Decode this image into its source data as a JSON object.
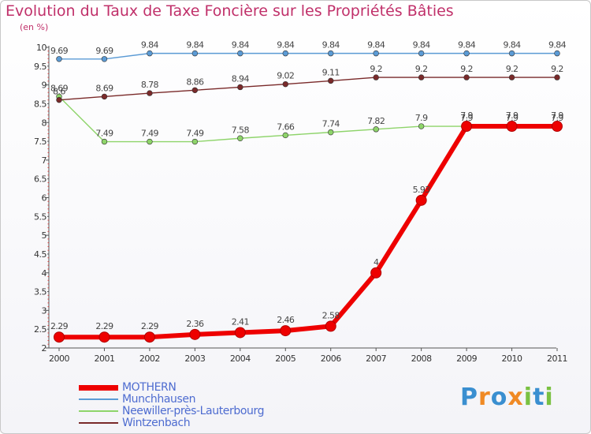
{
  "chart_data": {
    "type": "line",
    "title": "Evolution du Taux de Taxe Foncière sur les Propriétés Bâties",
    "ylabel": "(en %)",
    "xlabel": "",
    "categories": [
      "2000",
      "2001",
      "2002",
      "2003",
      "2004",
      "2005",
      "2006",
      "2007",
      "2008",
      "2009",
      "2010",
      "2011"
    ],
    "ylim": [
      2,
      10
    ],
    "yticks": [
      "2",
      "2.5",
      "3",
      "3.5",
      "4",
      "4.5",
      "5",
      "5.5",
      "6",
      "6.5",
      "7",
      "7.5",
      "8",
      "8.5",
      "9",
      "9.5",
      "10"
    ],
    "grid": false,
    "legend_position": "bottom-left",
    "series": [
      {
        "name": "MOTHERN",
        "color": "#ee0000",
        "values": [
          2.29,
          2.29,
          2.29,
          2.36,
          2.41,
          2.46,
          2.58,
          4,
          5.93,
          7.9,
          7.9,
          7.9
        ],
        "labels": [
          "2.29",
          "2.29",
          "2.29",
          "2.36",
          "2.41",
          "2.46",
          "2.58",
          "4",
          "5.93",
          "7.9",
          "7.9",
          "7.9"
        ]
      },
      {
        "name": "Munchhausen",
        "color": "#5b9bd5",
        "values": [
          9.69,
          9.69,
          9.84,
          9.84,
          9.84,
          9.84,
          9.84,
          9.84,
          9.84,
          9.84,
          9.84,
          9.84
        ],
        "labels": [
          "9.69",
          "9.69",
          "9.84",
          "9.84",
          "9.84",
          "9.84",
          "9.84",
          "9.84",
          "9.84",
          "9.84",
          "9.84",
          "9.84"
        ]
      },
      {
        "name": "Neewiller-près-Lauterbourg",
        "color": "#8ed46a",
        "values": [
          8.69,
          7.49,
          7.49,
          7.49,
          7.58,
          7.66,
          7.74,
          7.82,
          7.9,
          7.9,
          7.9,
          7.9
        ],
        "labels": [
          "8.69",
          "7.49",
          "7.49",
          "7.49",
          "7.58",
          "7.66",
          "7.74",
          "7.82",
          "7.9",
          "7.9",
          "7.9",
          "7.9"
        ]
      },
      {
        "name": "Wintzenbach",
        "color": "#7a2a2a",
        "values": [
          8.6,
          8.69,
          8.78,
          8.86,
          8.94,
          9.02,
          9.11,
          9.2,
          9.2,
          9.2,
          9.2,
          9.2
        ],
        "labels": [
          "8.6",
          "8.69",
          "8.78",
          "8.86",
          "8.94",
          "9.02",
          "9.11",
          "9.2",
          "9.2",
          "9.2",
          "9.2",
          "9.2"
        ]
      }
    ]
  },
  "logo": {
    "text": "Proxiti",
    "letters": [
      "P",
      "r",
      "o",
      "x",
      "i",
      "t",
      "i"
    ],
    "colors": [
      "#3a8fd0",
      "#f08a24",
      "#3a8fd0",
      "#f08a24",
      "#7ac142",
      "#3a8fd0",
      "#7ac142"
    ]
  }
}
